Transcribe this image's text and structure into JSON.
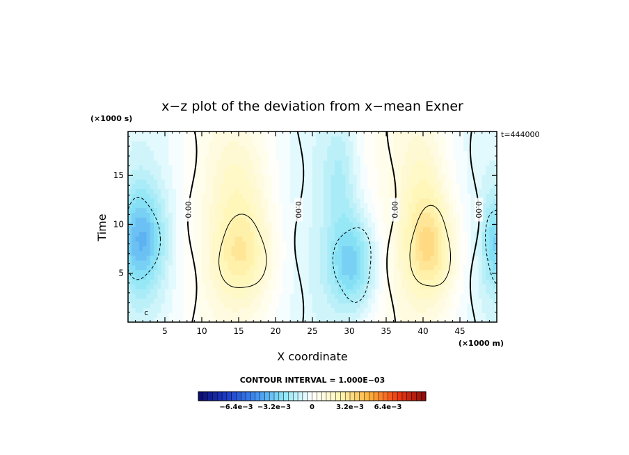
{
  "chart_data": {
    "type": "heatmap",
    "title": "x−z plot of the deviation from x−mean Exner",
    "xlabel": "X coordinate",
    "ylabel": "Time",
    "x_unit": "(×1000 m)",
    "y_unit": "(×1000 s)",
    "time_stamp": "t=444000",
    "xlim": [
      0,
      50
    ],
    "ylim": [
      0,
      19.5
    ],
    "x_ticks": [
      5,
      10,
      15,
      20,
      25,
      30,
      35,
      40,
      45
    ],
    "y_ticks": [
      5,
      10,
      15
    ],
    "x_tick_labels": [
      "5",
      "10",
      "15",
      "20",
      "25",
      "30",
      "35",
      "40",
      "45"
    ],
    "y_tick_labels": [
      "5",
      "10",
      "15"
    ],
    "contour_interval_text": "CONTOUR INTERVAL = 1.000E−03",
    "contour_interval": 0.001,
    "zero_contour_labels": [
      "0.00",
      "0.00",
      "0.00",
      "0.00"
    ],
    "zero_contour_x": [
      8.7,
      23.2,
      35.7,
      47.0
    ],
    "small_label": "c",
    "anomalies": [
      {
        "x": 1.8,
        "y": 8.5,
        "sx": 3.2,
        "sy": 5.5,
        "value": -0.003
      },
      {
        "x": 15.5,
        "y": 7.0,
        "sx": 4.2,
        "sy": 5.0,
        "value": 0.0022
      },
      {
        "x": 15.0,
        "y": 14.5,
        "sx": 4.0,
        "sy": 5.0,
        "value": 0.001
      },
      {
        "x": 30.5,
        "y": 6.0,
        "sx": 3.4,
        "sy": 5.0,
        "value": -0.0028
      },
      {
        "x": 28.8,
        "y": 15.0,
        "sx": 2.4,
        "sy": 6.0,
        "value": -0.0012
      },
      {
        "x": 41.0,
        "y": 7.5,
        "sx": 3.6,
        "sy": 5.5,
        "value": 0.0028
      },
      {
        "x": 40.0,
        "y": 15.0,
        "sx": 3.0,
        "sy": 6.0,
        "value": 0.001
      },
      {
        "x": 50.0,
        "y": 8.0,
        "sx": 2.0,
        "sy": 5.0,
        "value": -0.0022
      }
    ],
    "colorbar": {
      "min": -0.0096,
      "max": 0.0096,
      "n_bins": 48,
      "tick_labels": [
        "−6.4e−3",
        "−3.2e−3",
        "0",
        "3.2e−3",
        "6.4e−3"
      ],
      "tick_values": [
        -0.0064,
        -0.0032,
        0,
        0.0032,
        0.0064
      ],
      "colors": [
        "#0a0a6e",
        "#1e3cc8",
        "#3c8cf0",
        "#8ce6f5",
        "#ffffff",
        "#fff5b4",
        "#ffb43c",
        "#f03c14",
        "#8c0a0a"
      ]
    }
  }
}
